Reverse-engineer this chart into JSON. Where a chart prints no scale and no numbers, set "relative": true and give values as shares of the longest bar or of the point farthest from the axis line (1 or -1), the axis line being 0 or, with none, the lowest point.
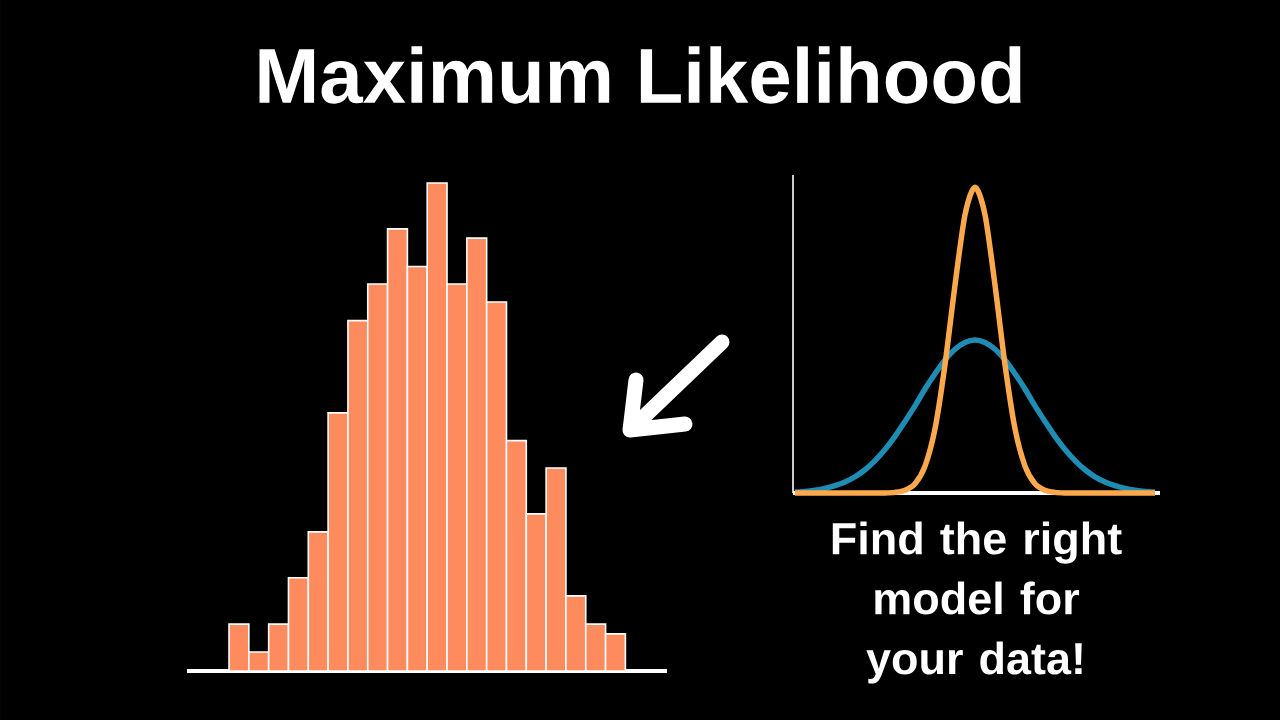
{
  "chart_data": [
    {
      "type": "bar",
      "title": "Maximum Likelihood",
      "relative": true,
      "categories": [
        null,
        null,
        null,
        null,
        null,
        null,
        null,
        null,
        null,
        null,
        null,
        null,
        null,
        null,
        null,
        null,
        null,
        null,
        null,
        null
      ],
      "color": "#fd8b5e",
      "values": [
        0.096,
        0.039,
        0.096,
        0.191,
        0.285,
        0.529,
        0.718,
        0.793,
        0.906,
        0.829,
        1,
        0.793,
        0.887,
        0.756,
        0.472,
        0.322,
        0.416,
        0.154,
        0.096,
        0.076
      ]
    },
    {
      "type": "line",
      "relative": true,
      "annotations": [
        "Find the right model for your data!"
      ],
      "categories": [
        null,
        null,
        null,
        null,
        null,
        null,
        null,
        null,
        null,
        null,
        null,
        null,
        null,
        null,
        null,
        null,
        null,
        null,
        null,
        null,
        null,
        null,
        null,
        null,
        null,
        null,
        null,
        null,
        null,
        null,
        null,
        null,
        null,
        null,
        null,
        null,
        null
      ],
      "series": [
        {
          "color": "#1f8db3",
          "values": [
            0.003,
            0.005,
            0.009,
            0.015,
            0.024,
            0.036,
            0.053,
            0.076,
            0.106,
            0.142,
            0.185,
            0.234,
            0.285,
            0.34,
            0.39,
            0.435,
            0.47,
            0.492,
            0.5,
            0.492,
            0.47,
            0.435,
            0.39,
            0.34,
            0.285,
            0.234,
            0.185,
            0.142,
            0.106,
            0.076,
            0.053,
            0.036,
            0.024,
            0.015,
            0.009,
            0.005,
            0.003
          ]
        },
        {
          "color": "#fba94c",
          "values": [
            0,
            0,
            0,
            0,
            0,
            0,
            0,
            0,
            0,
            0,
            0.002,
            0.009,
            0.03,
            0.088,
            0.21,
            0.42,
            0.68,
            0.91,
            1,
            0.91,
            0.68,
            0.42,
            0.21,
            0.088,
            0.03,
            0.009,
            0.002,
            0,
            0,
            0,
            0,
            0,
            0,
            0,
            0,
            0,
            0
          ]
        }
      ]
    }
  ]
}
